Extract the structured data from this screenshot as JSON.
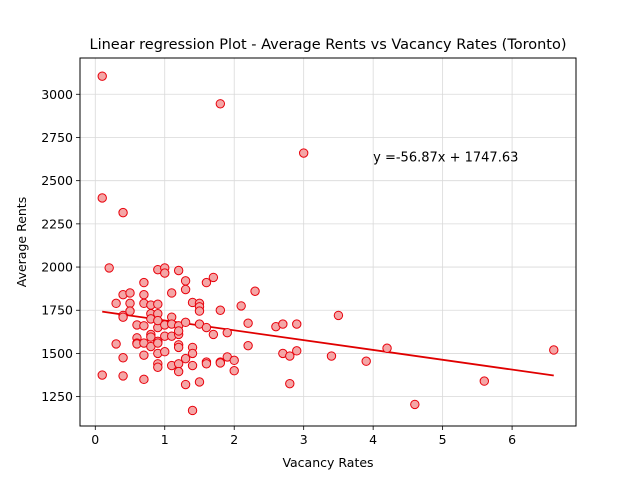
{
  "chart_data": {
    "type": "scatter",
    "title": "Linear regression Plot - Average Rents vs Vacancy Rates (Toronto)",
    "xlabel": "Vacancy Rates",
    "ylabel": "Average Rents",
    "xlim": [
      -0.22,
      6.92
    ],
    "ylim": [
      1080,
      3210
    ],
    "xticks": [
      0,
      1,
      2,
      3,
      4,
      5,
      6
    ],
    "xtick_labels": [
      "0",
      "1",
      "2",
      "3",
      "4",
      "5",
      "6"
    ],
    "yticks": [
      1250,
      1500,
      1750,
      2000,
      2250,
      2500,
      2750,
      3000
    ],
    "ytick_labels": [
      "1250",
      "1500",
      "1750",
      "2000",
      "2250",
      "2500",
      "2750",
      "3000"
    ],
    "grid": true,
    "annotation": {
      "text": "y =-56.87x + 1747.63",
      "x": 4.0,
      "y": 2610
    },
    "regression": {
      "slope": -56.87,
      "intercept": 1747.63,
      "x_range": [
        0.1,
        6.6
      ]
    },
    "colors": {
      "marker_face": "#f4a6a6",
      "marker_edge": "#e8000b",
      "line": "#e00000",
      "grid": "#d9d9d9"
    },
    "points": [
      [
        0.1,
        3105
      ],
      [
        0.1,
        2400
      ],
      [
        0.4,
        2315
      ],
      [
        1.8,
        2945
      ],
      [
        3.0,
        2660
      ],
      [
        0.2,
        1995
      ],
      [
        0.9,
        1985
      ],
      [
        1.0,
        1995
      ],
      [
        1.0,
        1965
      ],
      [
        1.2,
        1980
      ],
      [
        0.7,
        1910
      ],
      [
        1.3,
        1920
      ],
      [
        1.6,
        1910
      ],
      [
        1.7,
        1940
      ],
      [
        2.3,
        1860
      ],
      [
        0.4,
        1840
      ],
      [
        0.5,
        1850
      ],
      [
        0.7,
        1840
      ],
      [
        1.1,
        1850
      ],
      [
        1.3,
        1870
      ],
      [
        0.3,
        1790
      ],
      [
        0.5,
        1790
      ],
      [
        0.7,
        1790
      ],
      [
        0.8,
        1780
      ],
      [
        0.9,
        1785
      ],
      [
        1.4,
        1795
      ],
      [
        1.5,
        1790
      ],
      [
        1.5,
        1770
      ],
      [
        2.1,
        1775
      ],
      [
        0.4,
        1720
      ],
      [
        0.4,
        1710
      ],
      [
        0.5,
        1745
      ],
      [
        0.8,
        1730
      ],
      [
        0.9,
        1730
      ],
      [
        1.1,
        1710
      ],
      [
        1.5,
        1745
      ],
      [
        1.8,
        1750
      ],
      [
        3.5,
        1720
      ],
      [
        0.6,
        1665
      ],
      [
        0.7,
        1660
      ],
      [
        0.8,
        1700
      ],
      [
        0.9,
        1650
      ],
      [
        0.9,
        1690
      ],
      [
        1.0,
        1665
      ],
      [
        1.1,
        1670
      ],
      [
        1.2,
        1660
      ],
      [
        1.3,
        1680
      ],
      [
        1.5,
        1670
      ],
      [
        1.6,
        1650
      ],
      [
        1.9,
        1620
      ],
      [
        2.2,
        1675
      ],
      [
        2.6,
        1655
      ],
      [
        2.7,
        1670
      ],
      [
        2.9,
        1670
      ],
      [
        0.6,
        1590
      ],
      [
        0.8,
        1610
      ],
      [
        0.8,
        1595
      ],
      [
        1.0,
        1600
      ],
      [
        1.1,
        1600
      ],
      [
        1.2,
        1610
      ],
      [
        1.2,
        1630
      ],
      [
        1.7,
        1610
      ],
      [
        0.3,
        1555
      ],
      [
        0.6,
        1560
      ],
      [
        0.6,
        1555
      ],
      [
        0.7,
        1560
      ],
      [
        0.8,
        1540
      ],
      [
        0.9,
        1570
      ],
      [
        0.9,
        1560
      ],
      [
        1.2,
        1550
      ],
      [
        1.2,
        1535
      ],
      [
        1.4,
        1535
      ],
      [
        2.2,
        1545
      ],
      [
        4.2,
        1530
      ],
      [
        6.6,
        1520
      ],
      [
        0.4,
        1475
      ],
      [
        0.7,
        1490
      ],
      [
        0.9,
        1500
      ],
      [
        1.0,
        1510
      ],
      [
        1.3,
        1470
      ],
      [
        1.4,
        1500
      ],
      [
        1.6,
        1450
      ],
      [
        1.8,
        1450
      ],
      [
        1.9,
        1480
      ],
      [
        2.0,
        1460
      ],
      [
        2.7,
        1500
      ],
      [
        2.8,
        1485
      ],
      [
        2.9,
        1515
      ],
      [
        3.4,
        1485
      ],
      [
        3.9,
        1455
      ],
      [
        0.9,
        1440
      ],
      [
        0.9,
        1420
      ],
      [
        1.1,
        1430
      ],
      [
        1.2,
        1440
      ],
      [
        1.4,
        1430
      ],
      [
        1.6,
        1440
      ],
      [
        1.8,
        1445
      ],
      [
        0.1,
        1375
      ],
      [
        0.4,
        1370
      ],
      [
        1.2,
        1395
      ],
      [
        2.0,
        1400
      ],
      [
        0.7,
        1350
      ],
      [
        1.3,
        1320
      ],
      [
        1.5,
        1335
      ],
      [
        2.8,
        1325
      ],
      [
        5.6,
        1340
      ],
      [
        4.6,
        1205
      ],
      [
        1.4,
        1170
      ]
    ]
  }
}
